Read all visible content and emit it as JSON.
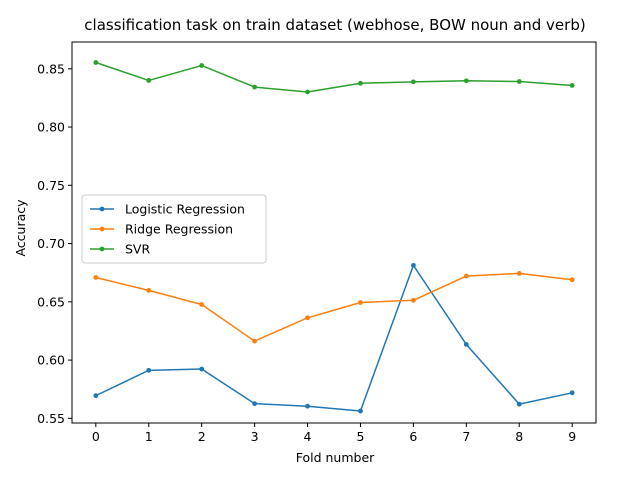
{
  "chart_data": {
    "type": "line",
    "title": "classification task on train dataset (webhose, BOW noun and verb)",
    "xlabel": "Fold number",
    "ylabel": "Accuracy",
    "x": [
      0,
      1,
      2,
      3,
      4,
      5,
      6,
      7,
      8,
      9
    ],
    "xticks": [
      "0",
      "1",
      "2",
      "3",
      "4",
      "5",
      "6",
      "7",
      "8",
      "9"
    ],
    "yticks": [
      "0.55",
      "0.60",
      "0.65",
      "0.70",
      "0.75",
      "0.80",
      "0.85"
    ],
    "ylim": [
      0.546,
      0.873
    ],
    "xlim": [
      -0.45,
      9.45
    ],
    "grid": false,
    "legend_position": "center-left",
    "series": [
      {
        "name": "Logistic Regression",
        "color": "#1f77b4",
        "values": [
          0.5695,
          0.5912,
          0.5923,
          0.5626,
          0.5604,
          0.5563,
          0.6813,
          0.6134,
          0.5622,
          0.5719
        ]
      },
      {
        "name": "Ridge Regression",
        "color": "#ff7f0e",
        "values": [
          0.6709,
          0.6598,
          0.6477,
          0.6163,
          0.6363,
          0.6494,
          0.6513,
          0.6721,
          0.6744,
          0.6689
        ]
      },
      {
        "name": "SVR",
        "color": "#2ca02c",
        "values": [
          0.8554,
          0.84,
          0.8528,
          0.8343,
          0.8301,
          0.8376,
          0.8388,
          0.8397,
          0.8391,
          0.8357
        ]
      }
    ]
  }
}
